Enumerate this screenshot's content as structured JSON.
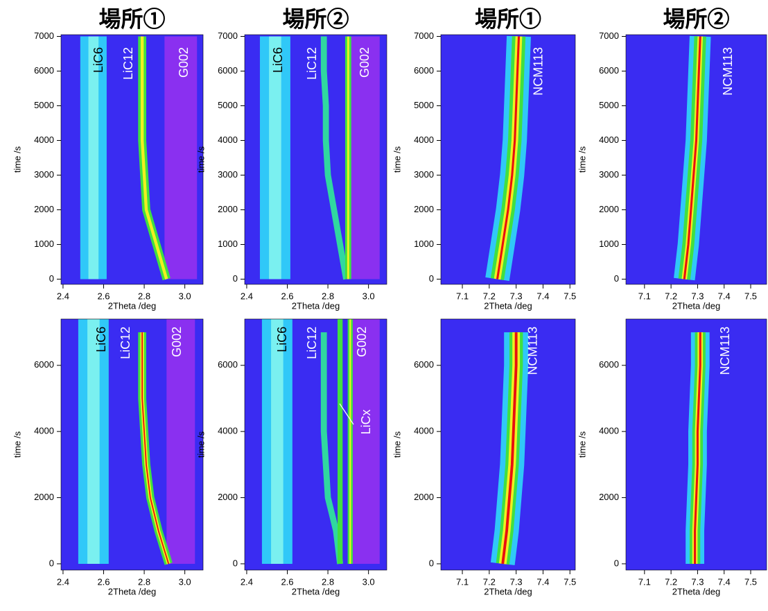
{
  "chart_data": [
    {
      "type": "heatmap",
      "title": "場所①",
      "xlabel": "2Theta /deg",
      "ylabel": "time /s",
      "xlim": [
        2.39,
        3.09
      ],
      "ylim": [
        -150,
        7050
      ],
      "xticks": [
        2.4,
        2.6,
        2.8,
        {
          "value": 3,
          "label": "3.0"
        }
      ],
      "yticks": [
        0,
        1000,
        2000,
        3000,
        4000,
        5000,
        6000,
        7000
      ],
      "background": "#3a2cf2",
      "annotations": [
        "LiC6",
        "LiC12",
        "G002"
      ],
      "ridges": [
        {
          "x": [
            2.98,
            2.98
          ],
          "y": [
            0,
            7000
          ],
          "width": 0.16,
          "color": "#8a30f0"
        },
        {
          "x": [
            2.55,
            2.55
          ],
          "y": [
            0,
            7000
          ],
          "width": 0.13,
          "color": "#30c8f8"
        },
        {
          "x": [
            2.55,
            2.55
          ],
          "y": [
            0,
            7000
          ],
          "width": 0.05,
          "color": "#7af0f0"
        },
        {
          "x": [
            2.91,
            2.86,
            2.81,
            2.8,
            2.79,
            2.79,
            2.79,
            2.79
          ],
          "y": [
            0,
            1000,
            2000,
            3000,
            4000,
            5000,
            6000,
            7000
          ],
          "width": 0.04,
          "color": "#40e040"
        },
        {
          "x": [
            2.91,
            2.86,
            2.81,
            2.8,
            2.79,
            2.79,
            2.79,
            2.79
          ],
          "y": [
            0,
            1000,
            2000,
            3000,
            4000,
            5000,
            6000,
            7000
          ],
          "width": 0.015,
          "color": "#f0f020"
        }
      ]
    },
    {
      "type": "heatmap",
      "title": "場所②",
      "xlabel": "2Theta /deg",
      "ylabel": "time /s",
      "xlim": [
        2.39,
        3.09
      ],
      "ylim": [
        -150,
        7050
      ],
      "xticks": [
        2.4,
        2.6,
        2.8,
        {
          "value": 3,
          "label": "3.0"
        }
      ],
      "yticks": [
        0,
        1000,
        2000,
        3000,
        4000,
        5000,
        6000,
        7000
      ],
      "background": "#3a2cf2",
      "annotations": [
        "LiC6",
        "LiC12",
        "G002"
      ],
      "ridges": [
        {
          "x": [
            2.98,
            2.98
          ],
          "y": [
            0,
            7000
          ],
          "width": 0.15,
          "color": "#8a30f0"
        },
        {
          "x": [
            2.54,
            2.54
          ],
          "y": [
            0,
            7000
          ],
          "width": 0.15,
          "color": "#30c8f8"
        },
        {
          "x": [
            2.54,
            2.54
          ],
          "y": [
            0,
            7000
          ],
          "width": 0.06,
          "color": "#7af0f0"
        },
        {
          "x": [
            2.89,
            2.86,
            2.83,
            2.8,
            2.79,
            2.79,
            2.78,
            2.78
          ],
          "y": [
            0,
            1000,
            2000,
            3000,
            4000,
            5000,
            6000,
            7000
          ],
          "width": 0.03,
          "color": "#30d8a0"
        },
        {
          "x": [
            2.9,
            2.9
          ],
          "y": [
            0,
            7000
          ],
          "width": 0.03,
          "color": "#40e040"
        },
        {
          "x": [
            2.9,
            2.9
          ],
          "y": [
            0,
            7000
          ],
          "width": 0.01,
          "color": "#f0f020"
        }
      ]
    },
    {
      "type": "heatmap",
      "title": "場所①",
      "xlabel": "2Theta /deg",
      "ylabel": "time /s",
      "xlim": [
        7.02,
        7.52
      ],
      "ylim": [
        -150,
        7050
      ],
      "xticks": [
        7.1,
        7.2,
        7.3,
        7.4,
        7.5
      ],
      "yticks": [
        0,
        1000,
        2000,
        3000,
        4000,
        5000,
        6000,
        7000
      ],
      "background": "#3a2cf2",
      "annotations": [
        "NCM113"
      ],
      "ridges": [
        {
          "x": [
            7.23,
            7.25,
            7.27,
            7.285,
            7.295,
            7.3,
            7.305,
            7.31
          ],
          "y": [
            0,
            1000,
            2000,
            3000,
            4000,
            5000,
            6000,
            7000
          ],
          "width": 0.09,
          "color": "#30c8f8"
        },
        {
          "x": [
            7.23,
            7.25,
            7.27,
            7.285,
            7.295,
            7.3,
            7.305,
            7.31
          ],
          "y": [
            0,
            1000,
            2000,
            3000,
            4000,
            5000,
            6000,
            7000
          ],
          "width": 0.05,
          "color": "#40e040"
        },
        {
          "x": [
            7.23,
            7.25,
            7.27,
            7.285,
            7.295,
            7.3,
            7.305,
            7.31
          ],
          "y": [
            0,
            1000,
            2000,
            3000,
            4000,
            5000,
            6000,
            7000
          ],
          "width": 0.025,
          "color": "#f0f020"
        },
        {
          "x": [
            7.23,
            7.25,
            7.27,
            7.285,
            7.295,
            7.3,
            7.305,
            7.31
          ],
          "y": [
            0,
            1000,
            2000,
            3000,
            4000,
            5000,
            6000,
            7000
          ],
          "width": 0.008,
          "color": "#e81010"
        }
      ]
    },
    {
      "type": "heatmap",
      "title": "場所②",
      "xlabel": "2Theta /deg",
      "ylabel": "time /s",
      "xlim": [
        7.03,
        7.56
      ],
      "ylim": [
        -150,
        7050
      ],
      "xticks": [
        7.1,
        7.2,
        7.3,
        7.4,
        7.5
      ],
      "yticks": [
        0,
        1000,
        2000,
        3000,
        4000,
        5000,
        6000,
        7000
      ],
      "background": "#3a2cf2",
      "annotations": [
        "NCM113"
      ],
      "ridges": [
        {
          "x": [
            7.25,
            7.265,
            7.275,
            7.285,
            7.295,
            7.3,
            7.305,
            7.31
          ],
          "y": [
            0,
            1000,
            2000,
            3000,
            4000,
            5000,
            6000,
            7000
          ],
          "width": 0.08,
          "color": "#30c8f8"
        },
        {
          "x": [
            7.25,
            7.265,
            7.275,
            7.285,
            7.295,
            7.3,
            7.305,
            7.31
          ],
          "y": [
            0,
            1000,
            2000,
            3000,
            4000,
            5000,
            6000,
            7000
          ],
          "width": 0.045,
          "color": "#40e040"
        },
        {
          "x": [
            7.25,
            7.265,
            7.275,
            7.285,
            7.295,
            7.3,
            7.305,
            7.31
          ],
          "y": [
            0,
            1000,
            2000,
            3000,
            4000,
            5000,
            6000,
            7000
          ],
          "width": 0.02,
          "color": "#f0f020"
        },
        {
          "x": [
            7.25,
            7.265,
            7.275,
            7.285,
            7.295,
            7.3,
            7.305,
            7.31
          ],
          "y": [
            0,
            1000,
            2000,
            3000,
            4000,
            5000,
            6000,
            7000
          ],
          "width": 0.008,
          "color": "#e81010"
        }
      ]
    },
    {
      "type": "heatmap",
      "xlabel": "2Theta /deg",
      "ylabel": "time /s",
      "xlim": [
        2.39,
        3.09
      ],
      "ylim": [
        -190,
        7400
      ],
      "xticks": [
        2.4,
        2.6,
        2.8,
        {
          "value": 3,
          "label": "3.0"
        }
      ],
      "yticks": [
        0,
        2000,
        4000,
        6000
      ],
      "background": "#3a2cf2",
      "annotations": [
        "LiC6",
        "LiC12",
        "G002"
      ],
      "ridges": [
        {
          "x": [
            2.98,
            2.98
          ],
          "y": [
            0,
            7400
          ],
          "width": 0.14,
          "color": "#8a30f0"
        },
        {
          "x": [
            2.55,
            2.55
          ],
          "y": [
            0,
            7400
          ],
          "width": 0.15,
          "color": "#30c8f8"
        },
        {
          "x": [
            2.55,
            2.55
          ],
          "y": [
            0,
            7400
          ],
          "width": 0.06,
          "color": "#7af0f0"
        },
        {
          "x": [
            2.92,
            2.87,
            2.83,
            2.81,
            2.8,
            2.79,
            2.79,
            2.79
          ],
          "y": [
            0,
            1000,
            2000,
            3000,
            4000,
            5000,
            6000,
            7000
          ],
          "width": 0.04,
          "color": "#40e040"
        },
        {
          "x": [
            2.92,
            2.87,
            2.83,
            2.81,
            2.8,
            2.79,
            2.79,
            2.79
          ],
          "y": [
            0,
            1000,
            2000,
            3000,
            4000,
            5000,
            6000,
            7000
          ],
          "width": 0.018,
          "color": "#f0f020"
        },
        {
          "x": [
            2.92,
            2.87,
            2.83,
            2.81,
            2.8,
            2.79,
            2.79,
            2.79
          ],
          "y": [
            0,
            1000,
            2000,
            3000,
            4000,
            5000,
            6000,
            7000
          ],
          "width": 0.006,
          "color": "#e81010"
        }
      ]
    },
    {
      "type": "heatmap",
      "xlabel": "2Theta /deg",
      "ylabel": "time /s",
      "xlim": [
        2.39,
        3.09
      ],
      "ylim": [
        -190,
        7400
      ],
      "xticks": [
        2.4,
        2.6,
        2.8,
        {
          "value": 3,
          "label": "3.0"
        }
      ],
      "yticks": [
        0,
        2000,
        4000,
        6000
      ],
      "background": "#3a2cf2",
      "annotations": [
        "LiC6",
        "LiC12",
        "G002",
        "LiCx"
      ],
      "ridges": [
        {
          "x": [
            2.98,
            2.98
          ],
          "y": [
            0,
            7400
          ],
          "width": 0.15,
          "color": "#8a30f0"
        },
        {
          "x": [
            2.55,
            2.55
          ],
          "y": [
            0,
            7400
          ],
          "width": 0.15,
          "color": "#30c8f8"
        },
        {
          "x": [
            2.55,
            2.55
          ],
          "y": [
            0,
            7400
          ],
          "width": 0.06,
          "color": "#7af0f0"
        },
        {
          "x": [
            2.86,
            2.84,
            2.8,
            2.79,
            2.78,
            2.78,
            2.78,
            2.78
          ],
          "y": [
            0,
            1000,
            2000,
            3000,
            4000,
            5000,
            6000,
            7000
          ],
          "width": 0.03,
          "color": "#30d8a0"
        },
        {
          "x": [
            2.86,
            2.86
          ],
          "y": [
            0,
            7400
          ],
          "width": 0.025,
          "color": "#40e040"
        },
        {
          "x": [
            2.91,
            2.91
          ],
          "y": [
            0,
            7400
          ],
          "width": 0.025,
          "color": "#40e040"
        },
        {
          "x": [
            2.91,
            2.91
          ],
          "y": [
            0,
            7400
          ],
          "width": 0.008,
          "color": "#f0f020"
        }
      ]
    },
    {
      "type": "heatmap",
      "xlabel": "2Theta /deg",
      "ylabel": "time /s",
      "xlim": [
        7.02,
        7.52
      ],
      "ylim": [
        -190,
        7400
      ],
      "xticks": [
        7.1,
        7.2,
        7.3,
        7.4,
        7.5
      ],
      "yticks": [
        0,
        2000,
        4000,
        6000
      ],
      "background": "#3a2cf2",
      "annotations": [
        "NCM113"
      ],
      "ridges": [
        {
          "x": [
            7.25,
            7.265,
            7.275,
            7.285,
            7.29,
            7.295,
            7.3,
            7.3
          ],
          "y": [
            0,
            1000,
            2000,
            3000,
            4000,
            5000,
            6000,
            7000
          ],
          "width": 0.09,
          "color": "#30c8f8"
        },
        {
          "x": [
            7.25,
            7.265,
            7.275,
            7.285,
            7.29,
            7.295,
            7.3,
            7.3
          ],
          "y": [
            0,
            1000,
            2000,
            3000,
            4000,
            5000,
            6000,
            7000
          ],
          "width": 0.05,
          "color": "#40e040"
        },
        {
          "x": [
            7.25,
            7.265,
            7.275,
            7.285,
            7.29,
            7.295,
            7.3,
            7.3
          ],
          "y": [
            0,
            1000,
            2000,
            3000,
            4000,
            5000,
            6000,
            7000
          ],
          "width": 0.028,
          "color": "#f0f020"
        },
        {
          "x": [
            7.25,
            7.265,
            7.275,
            7.285,
            7.29,
            7.295,
            7.3,
            7.3
          ],
          "y": [
            0,
            1000,
            2000,
            3000,
            4000,
            5000,
            6000,
            7000
          ],
          "width": 0.01,
          "color": "#e81010"
        }
      ]
    },
    {
      "type": "heatmap",
      "xlabel": "2Theta /deg",
      "ylabel": "time /s",
      "xlim": [
        7.03,
        7.56
      ],
      "ylim": [
        -190,
        7400
      ],
      "xticks": [
        7.1,
        7.2,
        7.3,
        7.4,
        7.5
      ],
      "yticks": [
        0,
        2000,
        4000,
        6000
      ],
      "background": "#3a2cf2",
      "annotations": [
        "NCM113"
      ],
      "ridges": [
        {
          "x": [
            7.29,
            7.29,
            7.295,
            7.3,
            7.3,
            7.305,
            7.31,
            7.31
          ],
          "y": [
            0,
            1000,
            2000,
            3000,
            4000,
            5000,
            6000,
            7000
          ],
          "width": 0.07,
          "color": "#30c8f8"
        },
        {
          "x": [
            7.29,
            7.29,
            7.295,
            7.3,
            7.3,
            7.305,
            7.31,
            7.31
          ],
          "y": [
            0,
            1000,
            2000,
            3000,
            4000,
            5000,
            6000,
            7000
          ],
          "width": 0.04,
          "color": "#40e040"
        },
        {
          "x": [
            7.29,
            7.29,
            7.295,
            7.3,
            7.3,
            7.305,
            7.31,
            7.31
          ],
          "y": [
            0,
            1000,
            2000,
            3000,
            4000,
            5000,
            6000,
            7000
          ],
          "width": 0.02,
          "color": "#f0f020"
        },
        {
          "x": [
            7.29,
            7.29,
            7.295,
            7.3,
            7.3,
            7.305,
            7.31,
            7.31
          ],
          "y": [
            0,
            1000,
            2000,
            3000,
            4000,
            5000,
            6000,
            7000
          ],
          "width": 0.008,
          "color": "#e81010"
        }
      ]
    }
  ]
}
